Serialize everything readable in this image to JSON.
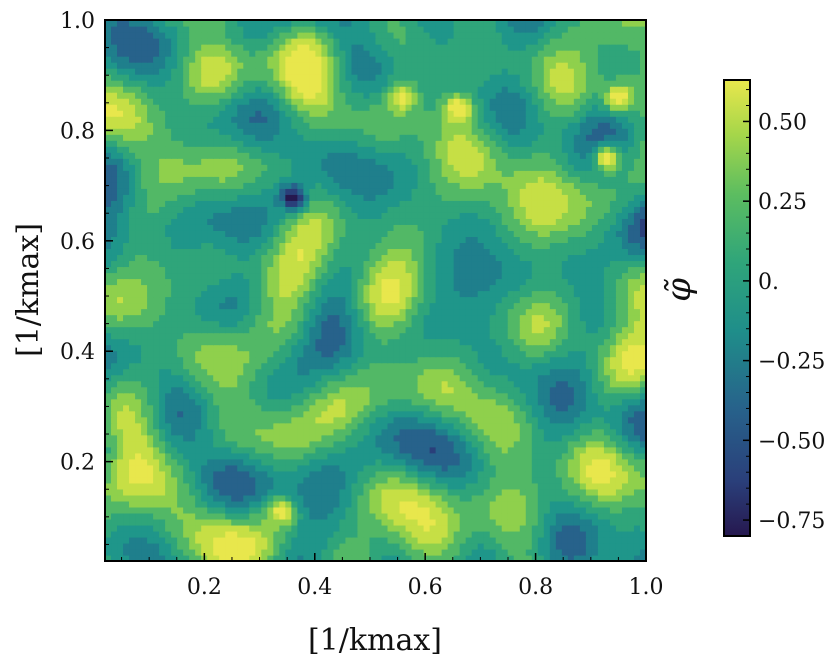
{
  "chart_data": {
    "type": "heatmap",
    "subtype": "filled-contour random field",
    "xlabel": "[1/k_max]",
    "ylabel": "[1/k_max]",
    "xlabel_display": "[1/kmax]",
    "ylabel_display": "[1/kmax]",
    "xlim": [
      0.02,
      1.0
    ],
    "ylim": [
      0.02,
      1.0
    ],
    "x_ticks": [
      0.2,
      0.4,
      0.6,
      0.8,
      1.0
    ],
    "x_tick_labels": [
      "0.2",
      "0.4",
      "0.6",
      "0.8",
      "1.0"
    ],
    "y_ticks": [
      0.2,
      0.4,
      0.6,
      0.8,
      1.0
    ],
    "y_tick_labels": [
      "0.2",
      "0.4",
      "0.6",
      "0.8",
      "1.0"
    ],
    "colorbar": {
      "label": "φ̃",
      "range": [
        -0.8,
        0.63
      ],
      "ticks": [
        0.5,
        0.25,
        0.0,
        -0.25,
        -0.5,
        -0.75
      ],
      "tick_labels": [
        "0.50",
        "0.25",
        "0.",
        "−0.25",
        "−0.50",
        "−0.75"
      ],
      "colormap": "viridis-like (dark blue → teal → green → yellow)"
    },
    "colors": {
      "dark": "#1f1a5b",
      "blue": "#2e5d8a",
      "teal": "#1f8e8a",
      "green": "#3fae6f",
      "light_green": "#8fd04c",
      "yellow": "#e3e54b"
    },
    "features": [
      {
        "type": "minimum",
        "x": 0.36,
        "y": 0.68,
        "value": -0.78
      },
      {
        "type": "maximum",
        "x": 0.66,
        "y": 0.84,
        "value": 0.6
      },
      {
        "type": "maximum",
        "x": 0.95,
        "y": 0.86,
        "value": 0.58
      },
      {
        "type": "maximum",
        "x": 0.93,
        "y": 0.75,
        "value": 0.55
      },
      {
        "type": "maximum",
        "x": 0.34,
        "y": 0.11,
        "value": 0.55
      },
      {
        "type": "maximum",
        "x": 0.56,
        "y": 0.86,
        "value": 0.5
      }
    ]
  }
}
